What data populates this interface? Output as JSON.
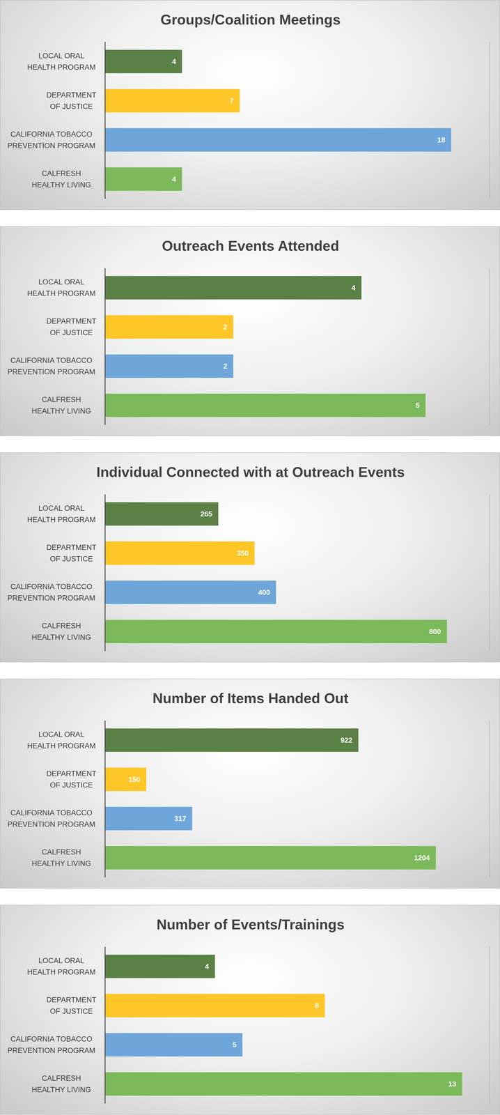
{
  "chart_data": [
    {
      "type": "bar",
      "title": "Groups/Coalition Meetings",
      "orientation": "horizontal",
      "categories": [
        "LOCAL ORAL HEALTH PROGRAM",
        "DEPARTMENT OF JUSTICE",
        "CALIFORNIA TOBACCO PREVENTION PROGRAM",
        "CALFRESH HEALTHY LIVING"
      ],
      "values": [
        4,
        7,
        18,
        4
      ],
      "colors": [
        "#5b8147",
        "#ffc628",
        "#6ea6d9",
        "#7cb95a"
      ],
      "xlim": [
        0,
        20
      ],
      "xticks": [
        0,
        2,
        4,
        6,
        8,
        10,
        12,
        14,
        16,
        18,
        20
      ],
      "grid": true,
      "data_labels": true,
      "tick_labels": "y"
    },
    {
      "type": "bar",
      "title": "Outreach Events Attended",
      "orientation": "horizontal",
      "categories": [
        "LOCAL ORAL HEALTH PROGRAM",
        "DEPARTMENT OF JUSTICE",
        "CALIFORNIA TOBACCO PREVENTION PROGRAM",
        "CALFRESH HEALTHY LIVING"
      ],
      "values": [
        4,
        2,
        2,
        5
      ],
      "colors": [
        "#5b8147",
        "#ffc628",
        "#6ea6d9",
        "#7cb95a"
      ],
      "xlim": [
        0,
        6
      ],
      "xticks": [
        0,
        1,
        2,
        3,
        4,
        5,
        6
      ],
      "grid": true,
      "data_labels": true,
      "tick_labels": "y"
    },
    {
      "type": "bar",
      "title": "Individual Connected with at Outreach Events",
      "orientation": "horizontal",
      "categories": [
        "LOCAL ORAL HEALTH PROGRAM",
        "DEPARTMENT OF JUSTICE",
        "CALIFORNIA TOBACCO PREVENTION PROGRAM",
        "CALFRESH HEALTHY LIVING"
      ],
      "values": [
        265,
        350,
        400,
        800
      ],
      "colors": [
        "#5b8147",
        "#ffc628",
        "#6ea6d9",
        "#7cb95a"
      ],
      "xlim": [
        0,
        900
      ],
      "xticks": [
        0,
        100,
        200,
        300,
        400,
        500,
        600,
        700,
        800,
        900
      ],
      "grid": true,
      "data_labels": true,
      "tick_labels": "y"
    },
    {
      "type": "bar",
      "title": "Number of Items Handed Out",
      "orientation": "horizontal",
      "categories": [
        "LOCAL ORAL HEALTH PROGRAM",
        "DEPARTMENT OF JUSTICE",
        "CALIFORNIA TOBACCO PREVENTION PROGRAM",
        "CALFRESH HEALTHY LIVING"
      ],
      "values": [
        922,
        150,
        317,
        1204
      ],
      "colors": [
        "#5b8147",
        "#ffc628",
        "#6ea6d9",
        "#7cb95a"
      ],
      "xlim": [
        0,
        1400
      ],
      "xticks": [
        0,
        200,
        400,
        600,
        800,
        1000,
        1200,
        1400
      ],
      "grid": true,
      "data_labels": true,
      "tick_labels": "y"
    },
    {
      "type": "bar",
      "title": "Number of Events/Trainings",
      "orientation": "horizontal",
      "categories": [
        "LOCAL ORAL HEALTH PROGRAM",
        "DEPARTMENT OF JUSTICE",
        "CALIFORNIA TOBACCO PREVENTION PROGRAM",
        "CALFRESH HEALTHY LIVING"
      ],
      "values": [
        4,
        8,
        5,
        13
      ],
      "colors": [
        "#5b8147",
        "#ffc628",
        "#6ea6d9",
        "#7cb95a"
      ],
      "xlim": [
        0,
        14
      ],
      "xticks": [
        0,
        2,
        4,
        6,
        8,
        10,
        12,
        14
      ],
      "grid": true,
      "data_labels": true,
      "tick_labels": "y"
    }
  ]
}
